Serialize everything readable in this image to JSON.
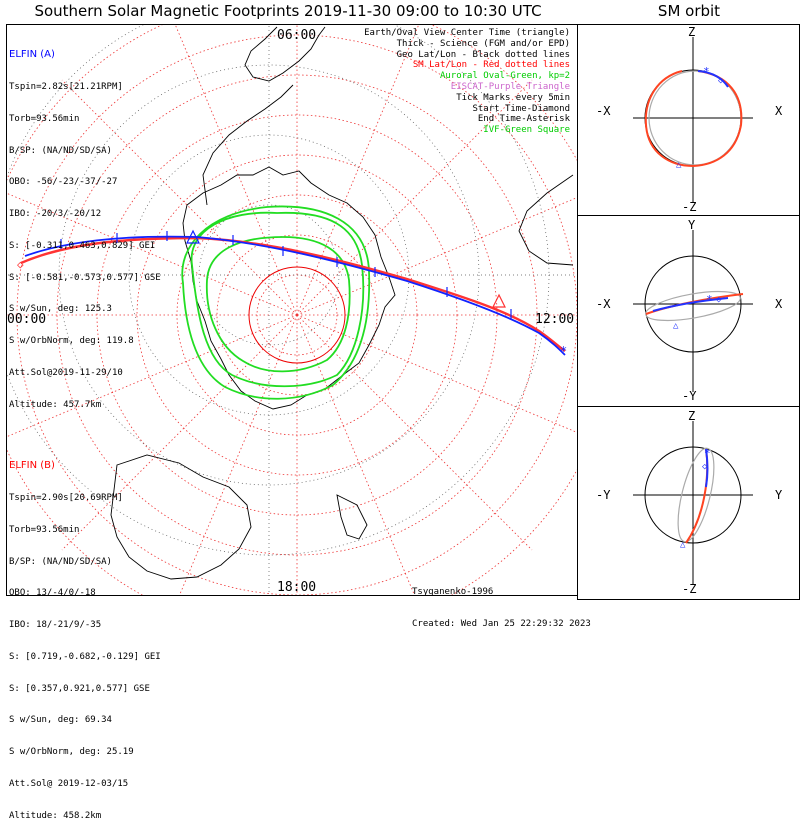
{
  "title": "Southern Solar Magnetic Footprints 2019-11-30 09:00 to 10:30 UTC",
  "sm_orbit_title": "SM orbit",
  "polar_labels": {
    "top": "06:00",
    "left": "00:00",
    "right": "12:00",
    "bottom": "18:00"
  },
  "legend": [
    {
      "text": "Earth/Oval View Center Time (triangle)",
      "color": "#000000"
    },
    {
      "text": "Thick - Science (FGM and/or EPD)",
      "color": "#000000"
    },
    {
      "text": "Geo Lat/Lon - Black dotted lines",
      "color": "#000000"
    },
    {
      "text": "SM Lat/Lon - Red dotted lines",
      "color": "#ff0000"
    },
    {
      "text": "Auroral Oval-Green, kp=2",
      "color": "#00cc00"
    },
    {
      "text": "EISCAT-Purple Triangle",
      "color": "#cc66cc"
    },
    {
      "text": "Tick Marks every 5min",
      "color": "#000000"
    },
    {
      "text": "Start Time-Diamond",
      "color": "#000000"
    },
    {
      "text": "End Time-Asterisk",
      "color": "#000000"
    },
    {
      "text": "IVF-Green Square",
      "color": "#00cc00"
    }
  ],
  "elfin_a": {
    "name": "ELFIN (A)",
    "color": "#0000ff",
    "lines": [
      "Tspin=2.82s[21.21RPM]",
      "Torb=93.56min",
      "B/SP: (NA/ND/SD/SA)",
      "OBO: -56/-23/-37/-27",
      "IBO: -20/3/-20/12",
      "S: [-0.311,0.463,0.829] GEI",
      "S: [-0.581,-0.573,0.577] GSE",
      "S w/Sun, deg: 125.3",
      "S w/OrbNorm, deg: 119.8",
      "Att.Sol@2019-11-29/10",
      "Altitude: 457.7km"
    ]
  },
  "elfin_b": {
    "name": "ELFIN (B)",
    "color": "#ff0000",
    "lines": [
      "Tspin=2.90s[20.69RPM]",
      "Torb=93.56min",
      "B/SP: (NA/ND/SD/SA)",
      "OBO: 13/-4/0/-18",
      "IBO: 18/-21/9/-35",
      "S: [0.719,-0.682,-0.129] GEI",
      "S: [0.357,0.921,0.577] GSE",
      "S w/Sun, deg: 69.34",
      "S w/OrbNorm, deg: 25.19",
      "Att.Sol@ 2019-12-03/15",
      "Altitude: 458.2km"
    ]
  },
  "credit": {
    "author": "Tsyganenko-1996",
    "created": "Created: Wed Jan 25 22:29:32 2023"
  },
  "sm_panels": [
    {
      "top": "Z",
      "bottom": "-Z",
      "left": "-X",
      "right": "X"
    },
    {
      "top": "Y",
      "bottom": "-Y",
      "left": "-X",
      "right": "X"
    },
    {
      "top": "Z",
      "bottom": "-Z",
      "left": "-Y",
      "right": "Y"
    }
  ],
  "chart_data": {
    "type": "polar footprint map",
    "hemisphere": "southern",
    "time_range": [
      "2019-11-30 09:00",
      "2019-11-30 10:30"
    ],
    "series": [
      {
        "name": "ELFIN (A)",
        "color": "#0000ff"
      },
      {
        "name": "ELFIN (B)",
        "color": "#ff0000"
      }
    ],
    "auroral_oval_kp": 2
  }
}
